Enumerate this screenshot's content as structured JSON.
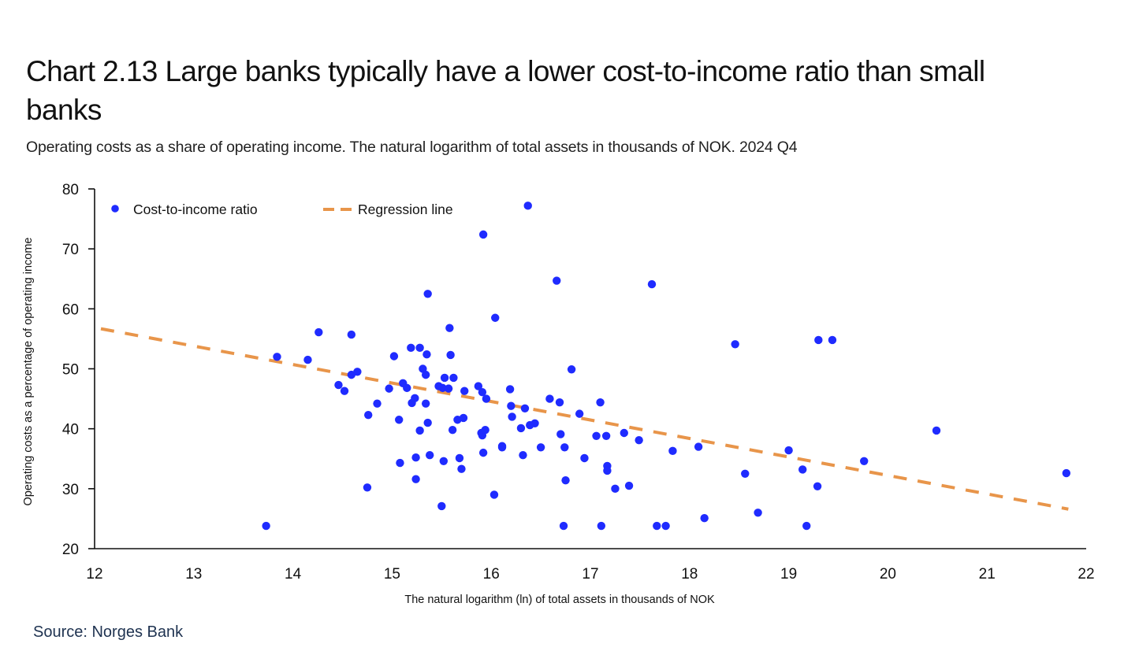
{
  "header": {
    "title": "Chart 2.13 Large banks typically have a lower cost-to-income ratio than small banks",
    "subtitle": "Operating costs as a share of operating income. The natural logarithm of total assets in thousands of NOK. 2024 Q4"
  },
  "footer": {
    "source": "Source: Norges Bank"
  },
  "colors": {
    "points": "#1f2bff",
    "regression": "#e8954a",
    "axis": "#111111",
    "source_text": "#1e3250"
  },
  "chart_data": {
    "type": "scatter",
    "title": "Chart 2.13 Large banks typically have a lower cost-to-income ratio than small banks",
    "subtitle": "Operating costs as a share of operating income. The natural logarithm of total assets in thousands of NOK. 2024 Q4",
    "xlabel": "The natural logarithm (ln) of total assets in thousands of NOK",
    "ylabel": "Operating costs as a percentage of operating income",
    "xlim": [
      12,
      22
    ],
    "ylim": [
      20,
      80
    ],
    "xticks": [
      "12",
      "13",
      "14",
      "15",
      "16",
      "17",
      "18",
      "19",
      "20",
      "21",
      "22"
    ],
    "yticks": [
      "80",
      "70",
      "60",
      "50",
      "40",
      "30",
      "20"
    ],
    "grid": false,
    "legend": {
      "placement": "top-left",
      "entries": [
        {
          "label": "Cost-to-income ratio",
          "marker": "dot"
        },
        {
          "label": "Regression line",
          "marker": "dashed-line"
        }
      ]
    },
    "series": [
      {
        "name": "Cost-to-income ratio",
        "kind": "scatter",
        "points": [
          [
            13.73,
            23.8
          ],
          [
            13.84,
            52.0
          ],
          [
            14.15,
            51.5
          ],
          [
            14.26,
            56.1
          ],
          [
            14.46,
            47.3
          ],
          [
            14.52,
            46.3
          ],
          [
            14.59,
            55.7
          ],
          [
            14.59,
            49.0
          ],
          [
            14.65,
            49.5
          ],
          [
            14.75,
            30.2
          ],
          [
            14.76,
            42.3
          ],
          [
            14.85,
            44.2
          ],
          [
            14.97,
            46.7
          ],
          [
            15.02,
            52.1
          ],
          [
            15.07,
            41.5
          ],
          [
            15.08,
            34.3
          ],
          [
            15.11,
            47.6
          ],
          [
            15.15,
            46.8
          ],
          [
            15.19,
            53.5
          ],
          [
            15.2,
            44.3
          ],
          [
            15.23,
            45.1
          ],
          [
            15.24,
            35.2
          ],
          [
            15.24,
            31.6
          ],
          [
            15.28,
            53.5
          ],
          [
            15.28,
            39.7
          ],
          [
            15.31,
            50.0
          ],
          [
            15.34,
            49.0
          ],
          [
            15.34,
            44.2
          ],
          [
            15.35,
            52.4
          ],
          [
            15.36,
            62.5
          ],
          [
            15.36,
            41.0
          ],
          [
            15.38,
            35.6
          ],
          [
            15.47,
            47.1
          ],
          [
            15.5,
            27.1
          ],
          [
            15.51,
            46.8
          ],
          [
            15.52,
            34.6
          ],
          [
            15.53,
            48.5
          ],
          [
            15.57,
            46.7
          ],
          [
            15.58,
            56.8
          ],
          [
            15.59,
            52.3
          ],
          [
            15.61,
            39.8
          ],
          [
            15.62,
            48.5
          ],
          [
            15.66,
            41.5
          ],
          [
            15.68,
            35.1
          ],
          [
            15.7,
            33.3
          ],
          [
            15.72,
            41.8
          ],
          [
            15.73,
            46.3
          ],
          [
            15.87,
            47.1
          ],
          [
            15.9,
            39.3
          ],
          [
            15.91,
            46.1
          ],
          [
            15.91,
            38.9
          ],
          [
            15.92,
            72.4
          ],
          [
            15.92,
            36.0
          ],
          [
            15.94,
            39.8
          ],
          [
            15.95,
            45.0
          ],
          [
            16.03,
            29.0
          ],
          [
            16.04,
            58.5
          ],
          [
            16.11,
            37.1
          ],
          [
            16.11,
            36.9
          ],
          [
            16.19,
            46.6
          ],
          [
            16.2,
            43.8
          ],
          [
            16.21,
            42.0
          ],
          [
            16.3,
            40.1
          ],
          [
            16.32,
            35.6
          ],
          [
            16.34,
            43.4
          ],
          [
            16.37,
            77.2
          ],
          [
            16.39,
            40.6
          ],
          [
            16.44,
            40.9
          ],
          [
            16.5,
            36.9
          ],
          [
            16.59,
            45.0
          ],
          [
            16.66,
            64.7
          ],
          [
            16.69,
            44.4
          ],
          [
            16.7,
            39.1
          ],
          [
            16.73,
            23.8
          ],
          [
            16.74,
            36.9
          ],
          [
            16.75,
            31.4
          ],
          [
            16.81,
            49.9
          ],
          [
            16.89,
            42.5
          ],
          [
            16.94,
            35.1
          ],
          [
            17.06,
            38.8
          ],
          [
            17.1,
            44.4
          ],
          [
            17.11,
            23.8
          ],
          [
            17.16,
            38.8
          ],
          [
            17.17,
            33.8
          ],
          [
            17.17,
            33.0
          ],
          [
            17.25,
            30.0
          ],
          [
            17.34,
            39.3
          ],
          [
            17.39,
            30.5
          ],
          [
            17.49,
            38.1
          ],
          [
            17.62,
            64.1
          ],
          [
            17.67,
            23.8
          ],
          [
            17.76,
            23.8
          ],
          [
            17.83,
            36.3
          ],
          [
            18.09,
            37.0
          ],
          [
            18.15,
            25.1
          ],
          [
            18.46,
            54.1
          ],
          [
            18.56,
            32.5
          ],
          [
            18.69,
            26.0
          ],
          [
            19.0,
            36.4
          ],
          [
            19.14,
            33.2
          ],
          [
            19.18,
            23.8
          ],
          [
            19.29,
            30.4
          ],
          [
            19.3,
            54.8
          ],
          [
            19.44,
            54.8
          ],
          [
            19.76,
            34.6
          ],
          [
            20.49,
            39.7
          ],
          [
            21.8,
            32.6
          ]
        ]
      },
      {
        "name": "Regression line",
        "kind": "line",
        "style": "dashed",
        "points": [
          [
            12.0,
            56.8
          ],
          [
            21.82,
            26.6
          ]
        ]
      }
    ]
  }
}
